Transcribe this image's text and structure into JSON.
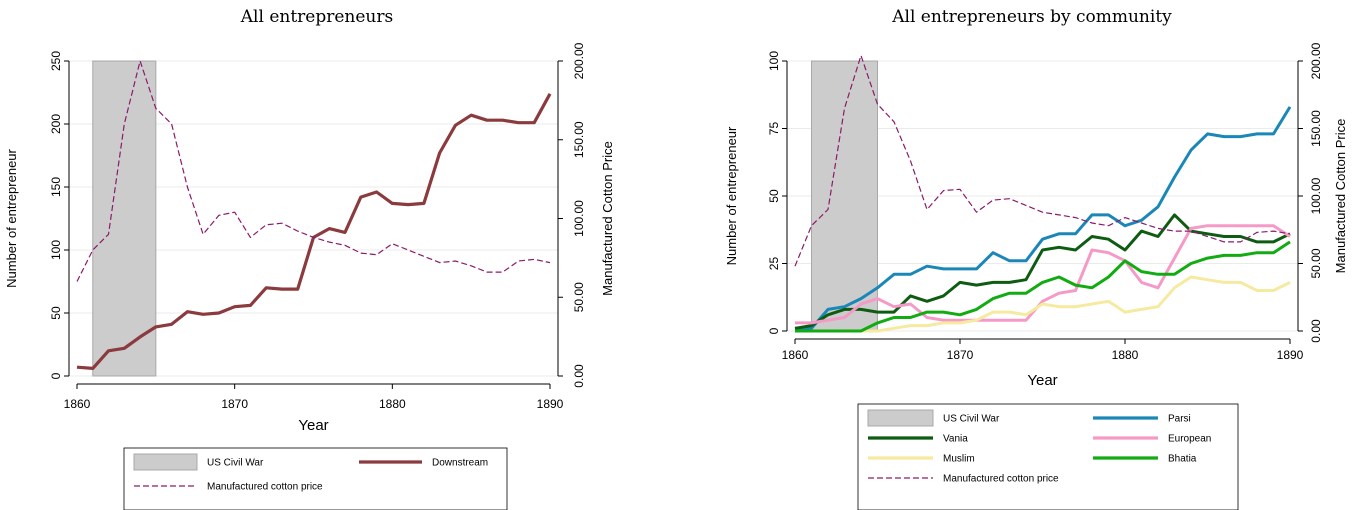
{
  "chart_data": [
    {
      "type": "line",
      "title": "All entrepreneurs",
      "xlabel": "Year",
      "ylabel": "Number of entrepreneur",
      "y2label": "Manufactured Cotton Price",
      "xlim": [
        1860,
        1890
      ],
      "ylim": [
        0,
        250
      ],
      "y2lim": [
        0,
        200
      ],
      "xticks": [
        "1860",
        "1870",
        "1880",
        "1890"
      ],
      "yticks": [
        "0",
        "50",
        "100",
        "150",
        "200",
        "250"
      ],
      "y2ticks": [
        "0.00",
        "50.00",
        "100.00",
        "150.00",
        "200.00"
      ],
      "grid": true,
      "shaded_region": {
        "label": "US Civil War",
        "x": [
          1861,
          1865
        ],
        "color": "#cccccc"
      },
      "series": [
        {
          "name": "Downstream",
          "axis": "left",
          "color": "#8b3a3e",
          "style": "solid",
          "x": [
            1860,
            1861,
            1862,
            1863,
            1864,
            1865,
            1866,
            1867,
            1868,
            1869,
            1870,
            1871,
            1872,
            1873,
            1874,
            1875,
            1876,
            1877,
            1878,
            1879,
            1880,
            1881,
            1882,
            1883,
            1884,
            1885,
            1886,
            1887,
            1888,
            1889,
            1890
          ],
          "values": [
            7,
            6,
            20,
            22,
            31,
            39,
            41,
            51,
            49,
            50,
            55,
            56,
            70,
            69,
            69,
            110,
            117,
            114,
            142,
            146,
            137,
            136,
            137,
            177,
            199,
            207,
            203,
            203,
            201,
            201,
            224
          ]
        },
        {
          "name": "Manufactured cotton price",
          "axis": "right",
          "color": "#8b1a6b",
          "style": "dashed",
          "x": [
            1860,
            1861,
            1862,
            1863,
            1864,
            1865,
            1866,
            1867,
            1868,
            1869,
            1870,
            1871,
            1872,
            1873,
            1874,
            1875,
            1876,
            1877,
            1878,
            1879,
            1880,
            1881,
            1882,
            1883,
            1884,
            1885,
            1886,
            1887,
            1888,
            1889,
            1890
          ],
          "values": [
            60,
            80,
            90,
            160,
            200,
            170,
            160,
            120,
            90,
            102,
            104,
            88,
            96,
            97,
            92,
            88,
            85,
            83,
            78,
            77,
            84,
            80,
            76,
            72,
            73,
            70,
            66,
            66,
            73,
            74,
            72
          ]
        }
      ]
    },
    {
      "type": "line",
      "title": "All entrepreneurs by community",
      "xlabel": "Year",
      "ylabel": "Number of entrepreneur",
      "y2label": "Manufactured Cotton Price",
      "xlim": [
        1860,
        1890
      ],
      "ylim": [
        0,
        100
      ],
      "y2lim": [
        0,
        200
      ],
      "xticks": [
        "1860",
        "1870",
        "1880",
        "1890"
      ],
      "yticks": [
        "0",
        "25",
        "50",
        "75",
        "100"
      ],
      "y2ticks": [
        "0.00",
        "50.00",
        "100.00",
        "150.00",
        "200.00"
      ],
      "grid": true,
      "shaded_region": {
        "label": "US Civil War",
        "x": [
          1861,
          1865
        ],
        "color": "#cccccc"
      },
      "series": [
        {
          "name": "Parsi",
          "axis": "left",
          "color": "#1a87b8",
          "style": "solid",
          "x": [
            1860,
            1861,
            1862,
            1863,
            1864,
            1865,
            1866,
            1867,
            1868,
            1869,
            1870,
            1871,
            1872,
            1873,
            1874,
            1875,
            1876,
            1877,
            1878,
            1879,
            1880,
            1881,
            1882,
            1883,
            1884,
            1885,
            1886,
            1887,
            1888,
            1889,
            1890
          ],
          "values": [
            1,
            1,
            8,
            9,
            12,
            16,
            21,
            21,
            24,
            23,
            23,
            23,
            29,
            26,
            26,
            34,
            36,
            36,
            43,
            43,
            39,
            41,
            46,
            57,
            67,
            73,
            72,
            72,
            73,
            73,
            83
          ]
        },
        {
          "name": "Vania",
          "axis": "left",
          "color": "#0e5c12",
          "style": "solid",
          "x": [
            1860,
            1861,
            1862,
            1863,
            1864,
            1865,
            1866,
            1867,
            1868,
            1869,
            1870,
            1871,
            1872,
            1873,
            1874,
            1875,
            1876,
            1877,
            1878,
            1879,
            1880,
            1881,
            1882,
            1883,
            1884,
            1885,
            1886,
            1887,
            1888,
            1889,
            1890
          ],
          "values": [
            1,
            2,
            6,
            8,
            8,
            7,
            7,
            13,
            11,
            13,
            18,
            17,
            18,
            18,
            19,
            30,
            31,
            30,
            35,
            34,
            30,
            37,
            35,
            43,
            37,
            36,
            35,
            35,
            33,
            33,
            36
          ]
        },
        {
          "name": "European",
          "axis": "left",
          "color": "#f59ac7",
          "style": "solid",
          "x": [
            1860,
            1861,
            1862,
            1863,
            1864,
            1865,
            1866,
            1867,
            1868,
            1869,
            1870,
            1871,
            1872,
            1873,
            1874,
            1875,
            1876,
            1877,
            1878,
            1879,
            1880,
            1881,
            1882,
            1883,
            1884,
            1885,
            1886,
            1887,
            1888,
            1889,
            1890
          ],
          "values": [
            3,
            3,
            4,
            5,
            10,
            12,
            9,
            10,
            5,
            4,
            4,
            4,
            4,
            4,
            4,
            11,
            14,
            15,
            30,
            29,
            26,
            18,
            16,
            27,
            38,
            39,
            39,
            39,
            39,
            39,
            35
          ]
        },
        {
          "name": "Muslim",
          "axis": "left",
          "color": "#f6e9a0",
          "style": "solid",
          "x": [
            1860,
            1861,
            1862,
            1863,
            1864,
            1865,
            1866,
            1867,
            1868,
            1869,
            1870,
            1871,
            1872,
            1873,
            1874,
            1875,
            1876,
            1877,
            1878,
            1879,
            1880,
            1881,
            1882,
            1883,
            1884,
            1885,
            1886,
            1887,
            1888,
            1889,
            1890
          ],
          "values": [
            0,
            0,
            0,
            0,
            0,
            0,
            1,
            2,
            2,
            3,
            3,
            4,
            7,
            7,
            6,
            10,
            9,
            9,
            10,
            11,
            7,
            8,
            9,
            16,
            20,
            19,
            18,
            18,
            15,
            15,
            18
          ]
        },
        {
          "name": "Bhatia",
          "axis": "left",
          "color": "#12ab12",
          "style": "solid",
          "x": [
            1860,
            1861,
            1862,
            1863,
            1864,
            1865,
            1866,
            1867,
            1868,
            1869,
            1870,
            1871,
            1872,
            1873,
            1874,
            1875,
            1876,
            1877,
            1878,
            1879,
            1880,
            1881,
            1882,
            1883,
            1884,
            1885,
            1886,
            1887,
            1888,
            1889,
            1890
          ],
          "values": [
            0,
            0,
            0,
            0,
            0,
            3,
            5,
            5,
            7,
            7,
            6,
            8,
            12,
            14,
            14,
            18,
            20,
            17,
            16,
            20,
            26,
            22,
            21,
            21,
            25,
            27,
            28,
            28,
            29,
            29,
            33
          ]
        },
        {
          "name": "Manufactured cotton price",
          "axis": "right",
          "color": "#8b1a6b",
          "style": "dashed",
          "x": [
            1860,
            1861,
            1862,
            1863,
            1864,
            1865,
            1866,
            1867,
            1868,
            1869,
            1870,
            1871,
            1872,
            1873,
            1874,
            1875,
            1876,
            1877,
            1878,
            1879,
            1880,
            1881,
            1882,
            1883,
            1884,
            1885,
            1886,
            1887,
            1888,
            1889,
            1890
          ],
          "values": [
            48,
            78,
            90,
            165,
            204,
            168,
            155,
            126,
            90,
            104,
            105,
            88,
            97,
            98,
            93,
            88,
            86,
            84,
            80,
            78,
            84,
            80,
            76,
            74,
            74,
            70,
            66,
            66,
            73,
            74,
            72
          ]
        }
      ]
    }
  ],
  "legends": [
    {
      "items": [
        {
          "label": "US Civil War",
          "kind": "box",
          "color": "#cccccc"
        },
        {
          "label": "Downstream",
          "kind": "line",
          "color": "#8b3a3e",
          "dash": false
        },
        {
          "label": "Manufactured cotton price",
          "kind": "line",
          "color": "#8b1a6b",
          "dash": true
        }
      ]
    },
    {
      "items": [
        {
          "label": "US Civil War",
          "kind": "box",
          "color": "#cccccc"
        },
        {
          "label": "Parsi",
          "kind": "line",
          "color": "#1a87b8",
          "dash": false
        },
        {
          "label": "Vania",
          "kind": "line",
          "color": "#0e5c12",
          "dash": false
        },
        {
          "label": "European",
          "kind": "line",
          "color": "#f59ac7",
          "dash": false
        },
        {
          "label": "Muslim",
          "kind": "line",
          "color": "#f6e9a0",
          "dash": false
        },
        {
          "label": "Bhatia",
          "kind": "line",
          "color": "#12ab12",
          "dash": false
        },
        {
          "label": "Manufactured cotton price",
          "kind": "line",
          "color": "#8b1a6b",
          "dash": true
        }
      ]
    }
  ]
}
